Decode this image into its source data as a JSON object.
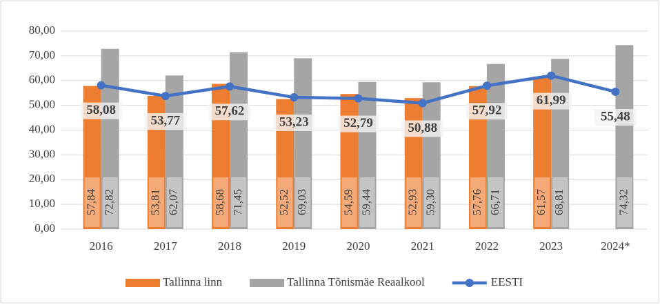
{
  "chart_data": {
    "type": "bar",
    "categories": [
      "2016",
      "2017",
      "2018",
      "2019",
      "2020",
      "2021",
      "2022",
      "2023",
      "2024*"
    ],
    "series": [
      {
        "name": "Tallinna linn",
        "type": "bar",
        "color": "#ed7d31",
        "values": [
          57.84,
          53.81,
          58.68,
          52.52,
          54.59,
          52.93,
          57.76,
          61.57,
          null
        ],
        "value_labels": [
          "57,84",
          "53,81",
          "58,68",
          "52,52",
          "54,59",
          "52,93",
          "57,76",
          "61,57",
          null
        ]
      },
      {
        "name": "Tallinna Tõnismäe Reaalkool",
        "type": "bar",
        "color": "#a5a5a5",
        "values": [
          72.82,
          62.07,
          71.45,
          69.03,
          59.44,
          59.3,
          66.71,
          68.81,
          74.32
        ],
        "value_labels": [
          "72,82",
          "62,07",
          "71,45",
          "69,03",
          "59,44",
          "59,30",
          "66,71",
          "68,81",
          "74,32"
        ]
      },
      {
        "name": "EESTI",
        "type": "line",
        "color": "#4472c4",
        "values": [
          58.08,
          53.77,
          57.62,
          53.23,
          52.79,
          50.88,
          57.92,
          61.99,
          55.48
        ],
        "value_labels": [
          "58,08",
          "53,77",
          "57,62",
          "53,23",
          "52,79",
          "50,88",
          "57,92",
          "61,99",
          "55,48"
        ]
      }
    ],
    "ylim": [
      0,
      80
    ],
    "yticks": [
      {
        "value": 0,
        "label": "0,00"
      },
      {
        "value": 10,
        "label": "10,00"
      },
      {
        "value": 20,
        "label": "20,00"
      },
      {
        "value": 30,
        "label": "30,00"
      },
      {
        "value": 40,
        "label": "40,00"
      },
      {
        "value": 50,
        "label": "50,00"
      },
      {
        "value": 60,
        "label": "60,00"
      },
      {
        "value": 70,
        "label": "70,00"
      },
      {
        "value": 80,
        "label": "80,00"
      }
    ],
    "grid": true,
    "legend": "bottom"
  }
}
